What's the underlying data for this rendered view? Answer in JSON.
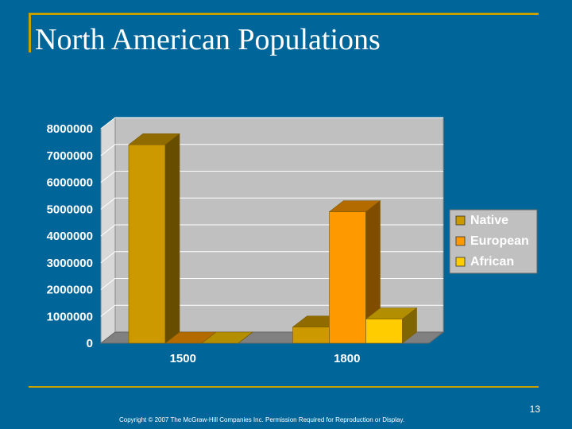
{
  "slide": {
    "title": "North American Populations",
    "page_number": "13",
    "copyright": "Copyright © 2007 The McGraw-Hill Companies Inc. Permission Required for Reproduction or Display."
  },
  "colors": {
    "background": "#006699",
    "accent_rule": "#c8a000",
    "plot_wall": "#c0c0c0",
    "native": "#cc9900",
    "european": "#ff9900",
    "african": "#ffcc00"
  },
  "chart_data": {
    "type": "bar",
    "style": "3d-clustered-column",
    "categories": [
      "1500",
      "1800"
    ],
    "series": [
      {
        "name": "Native",
        "values": [
          7400000,
          600000
        ]
      },
      {
        "name": "European",
        "values": [
          0,
          4900000
        ]
      },
      {
        "name": "African",
        "values": [
          0,
          900000
        ]
      }
    ],
    "ylim": [
      0,
      8000000
    ],
    "y_ticks": [
      "0",
      "1000000",
      "2000000",
      "3000000",
      "4000000",
      "5000000",
      "6000000",
      "7000000",
      "8000000"
    ],
    "grid": true,
    "legend_position": "right"
  }
}
